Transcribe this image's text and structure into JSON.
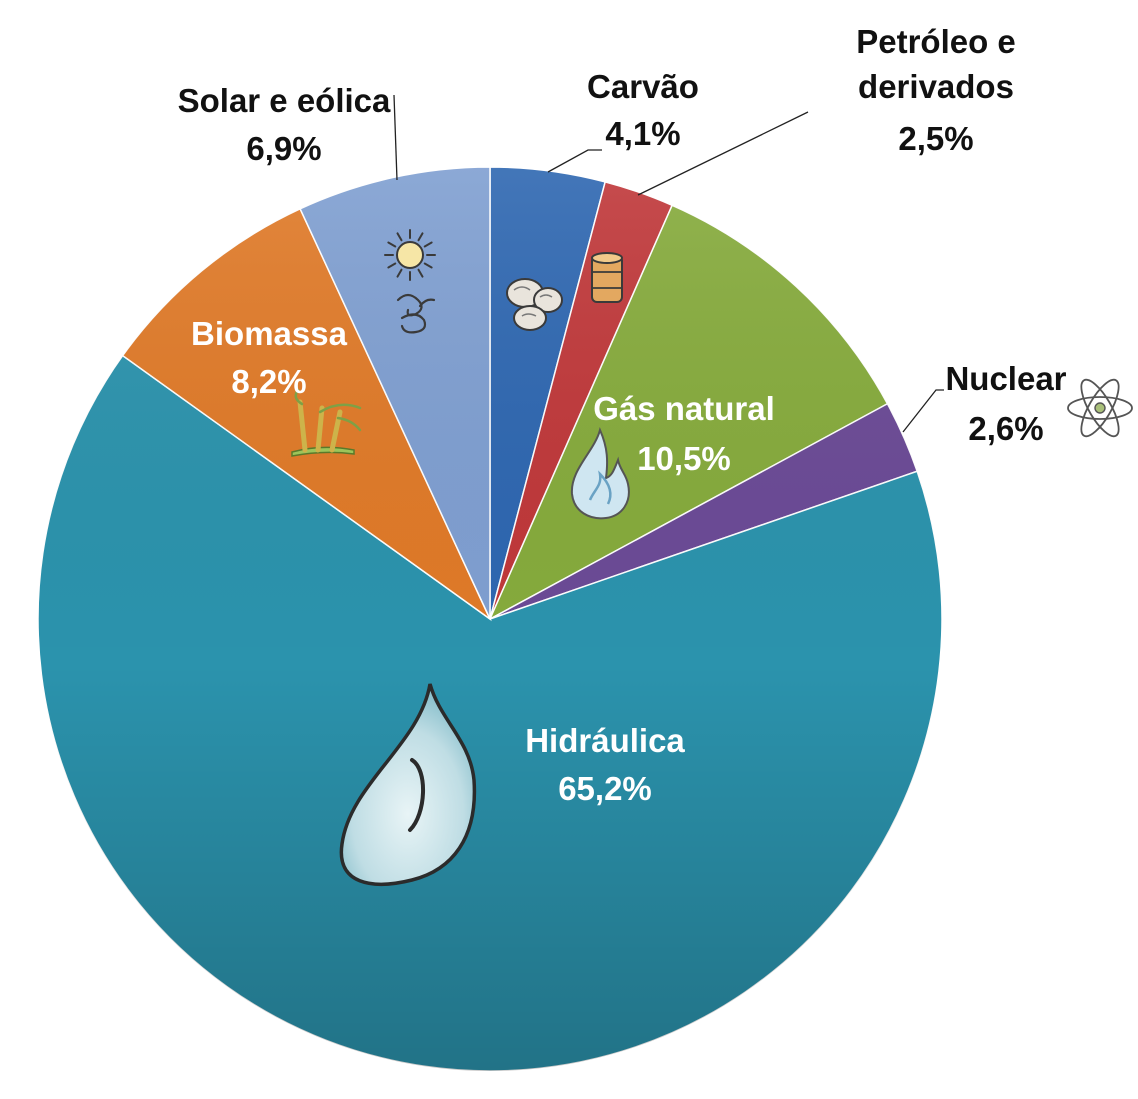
{
  "chart_data": {
    "type": "pie",
    "start_angle_deg": 0,
    "direction": "clockwise",
    "slices": [
      {
        "name": "Carvão",
        "value": 4.1,
        "value_label": "4,1%",
        "color": "#2e67b1",
        "icon": "coal-icon"
      },
      {
        "name": "Petróleo e derivados",
        "name_lines": [
          "Petróleo e",
          "derivados"
        ],
        "value": 2.5,
        "value_label": "2,5%",
        "color": "#c0383a",
        "icon": "oil-barrel-icon"
      },
      {
        "name": "Gás natural",
        "value": 10.5,
        "value_label": "10,5%",
        "color": "#86ab3c",
        "icon": "flame-icon"
      },
      {
        "name": "Nuclear",
        "value": 2.6,
        "value_label": "2,6%",
        "color": "#6b4a96",
        "icon": "atom-icon"
      },
      {
        "name": "Hidráulica",
        "value": 65.2,
        "value_label": "65,2%",
        "color": "#2b93ad",
        "icon": "water-drop-icon"
      },
      {
        "name": "Biomassa",
        "value": 8.2,
        "value_label": "8,2%",
        "color": "#e07a28",
        "icon": "sugarcane-icon"
      },
      {
        "name": "Solar e eólica",
        "value": 6.9,
        "value_label": "6,9%",
        "color": "#7f9fd1",
        "icon": "sun-wind-icon"
      }
    ]
  }
}
